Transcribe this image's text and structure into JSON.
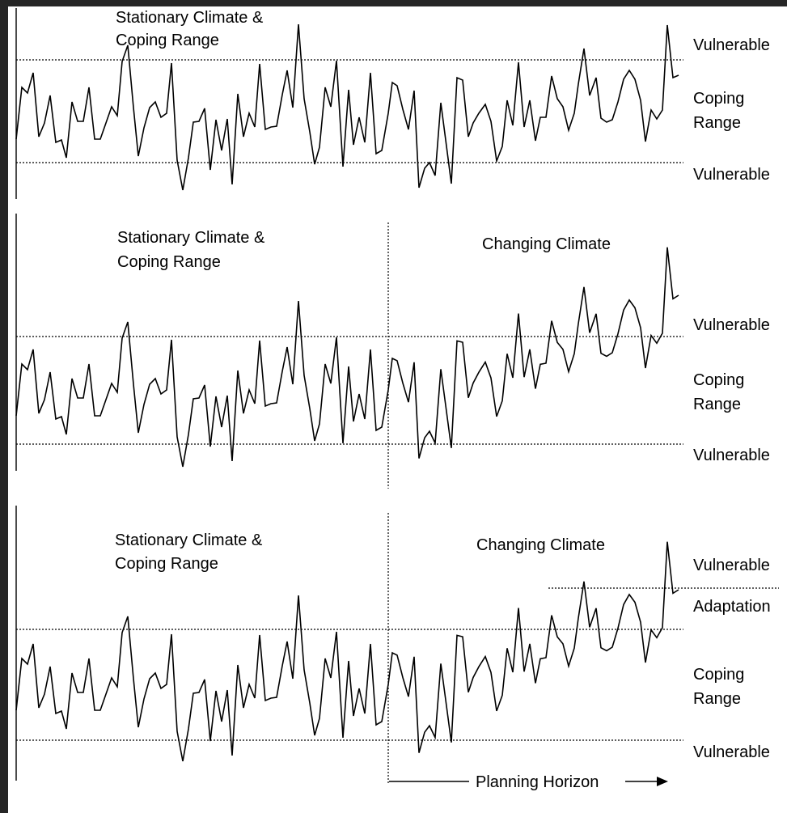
{
  "panels": [
    {
      "left_title_line1": "Stationary Climate &",
      "left_title_line2": "Coping Range",
      "right_title": "",
      "upper_label": "Vulnerable",
      "middle_label_line1": "Coping",
      "middle_label_line2": "Range",
      "lower_label": "Vulnerable",
      "adaptation_label": "",
      "top_vulnerable_label": ""
    },
    {
      "left_title_line1": "Stationary Climate &",
      "left_title_line2": "Coping Range",
      "right_title": "Changing Climate",
      "upper_label": "Vulnerable",
      "middle_label_line1": "Coping",
      "middle_label_line2": "Range",
      "lower_label": "Vulnerable",
      "adaptation_label": "",
      "top_vulnerable_label": ""
    },
    {
      "left_title_line1": "Stationary Climate &",
      "left_title_line2": "Coping Range",
      "right_title": "Changing Climate",
      "upper_label": "Adaptation",
      "middle_label_line1": "Coping",
      "middle_label_line2": "Range",
      "lower_label": "Vulnerable",
      "adaptation_label": "Adaptation",
      "top_vulnerable_label": "Vulnerable"
    }
  ],
  "planning_horizon_label": "Planning Horizon",
  "colors": {
    "line": "#000000",
    "background": "#ffffff",
    "border": "#262626"
  }
}
